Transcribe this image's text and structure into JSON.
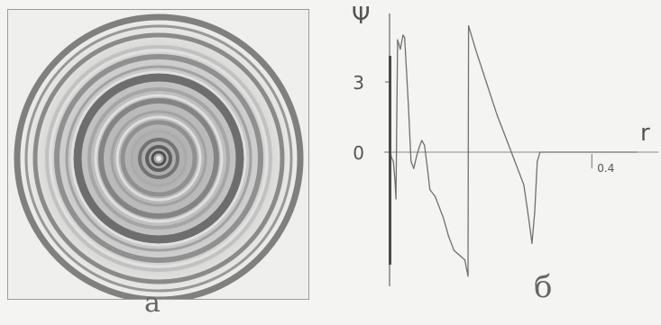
{
  "panels": {
    "a": {
      "label": "a"
    },
    "b": {
      "label": "б"
    }
  },
  "chart_data": {
    "type": "line",
    "title": "",
    "xlabel": "r",
    "ylabel": "Ψ",
    "x_ticks": [
      {
        "value": 0.4,
        "label": "0.4"
      }
    ],
    "y_ticks": [
      {
        "value": 3,
        "label": "3"
      },
      {
        "value": 0,
        "label": "0"
      }
    ],
    "xlim": [
      0,
      0.47
    ],
    "ylim": [
      -5.5,
      5.5
    ],
    "series": [
      {
        "points": [
          [
            0.0,
            0.4
          ],
          [
            0.003,
            -0.2
          ],
          [
            0.007,
            -0.4
          ],
          [
            0.01,
            -1.2
          ],
          [
            0.012,
            -2.0
          ],
          [
            0.015,
            4.8
          ],
          [
            0.02,
            4.4
          ],
          [
            0.025,
            5.0
          ],
          [
            0.028,
            4.9
          ],
          [
            0.035,
            2.0
          ],
          [
            0.04,
            -0.4
          ],
          [
            0.045,
            -0.7
          ],
          [
            0.05,
            -0.2
          ],
          [
            0.055,
            0.2
          ],
          [
            0.06,
            0.5
          ],
          [
            0.065,
            0.3
          ],
          [
            0.07,
            -0.6
          ],
          [
            0.075,
            -1.6
          ],
          [
            0.085,
            -1.9
          ],
          [
            0.1,
            -2.8
          ],
          [
            0.11,
            -3.6
          ],
          [
            0.12,
            -4.2
          ],
          [
            0.13,
            -4.4
          ],
          [
            0.14,
            -4.6
          ],
          [
            0.146,
            -5.3
          ],
          [
            0.147,
            5.4
          ],
          [
            0.16,
            4.4
          ],
          [
            0.18,
            3.0
          ],
          [
            0.2,
            1.6
          ],
          [
            0.22,
            0.4
          ],
          [
            0.235,
            -0.5
          ],
          [
            0.25,
            -1.4
          ],
          [
            0.26,
            -3.0
          ],
          [
            0.265,
            -3.9
          ],
          [
            0.27,
            -2.6
          ],
          [
            0.275,
            -0.4
          ],
          [
            0.28,
            0.0
          ],
          [
            0.3,
            0.0
          ],
          [
            0.4,
            0.0
          ],
          [
            0.46,
            0.0
          ]
        ]
      }
    ]
  }
}
